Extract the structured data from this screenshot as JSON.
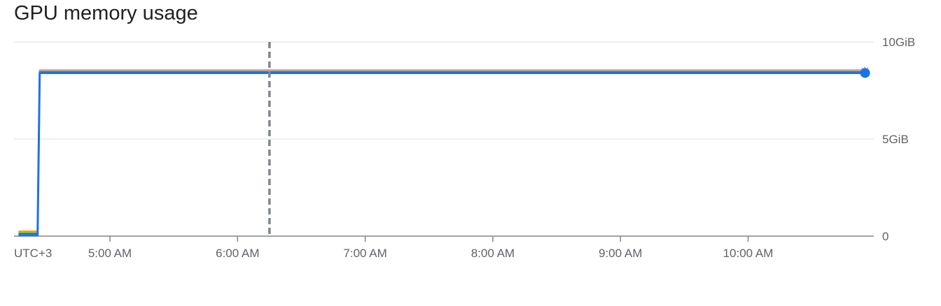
{
  "chart_data": {
    "type": "line",
    "title": "GPU memory usage",
    "xlabel": "",
    "ylabel": "",
    "timezone_label": "UTC+3",
    "x_ticks": [
      "5:00 AM",
      "6:00 AM",
      "7:00 AM",
      "8:00 AM",
      "9:00 AM",
      "10:00 AM"
    ],
    "x_range": [
      "4:17 AM",
      "10:55 AM"
    ],
    "y_ticks": [
      {
        "value": 0,
        "label": "0"
      },
      {
        "value": 5,
        "label": "5GiB"
      },
      {
        "value": 10,
        "label": "10GiB"
      }
    ],
    "ylim": [
      0,
      10
    ],
    "y_unit": "GiB",
    "grid": true,
    "marker_time": "6:15 AM",
    "series": [
      {
        "color": "#c58af9",
        "x": [
          "4:17 AM",
          "4:26 AM",
          "4:27 AM",
          "10:55 AM"
        ],
        "values": [
          0.1,
          0.1,
          8.55,
          8.55
        ]
      },
      {
        "color": "#f29900",
        "x": [
          "4:17 AM",
          "4:26 AM",
          "4:27 AM",
          "10:55 AM"
        ],
        "values": [
          0.25,
          0.25,
          8.48,
          8.48
        ]
      },
      {
        "color": "#1e8e3e",
        "x": [
          "4:17 AM",
          "4:26 AM",
          "4:27 AM",
          "10:55 AM"
        ],
        "values": [
          0.15,
          0.15,
          8.45,
          8.45
        ]
      },
      {
        "color": "#129eaf",
        "x": [
          "4:17 AM",
          "4:26 AM",
          "4:27 AM",
          "10:55 AM"
        ],
        "values": [
          0.05,
          0.05,
          8.42,
          8.42
        ]
      },
      {
        "color": "#1a73e8",
        "x": [
          "4:17 AM",
          "4:26 AM",
          "4:27 AM",
          "10:55 AM"
        ],
        "values": [
          0.05,
          0.05,
          8.4,
          8.4
        ]
      }
    ]
  }
}
